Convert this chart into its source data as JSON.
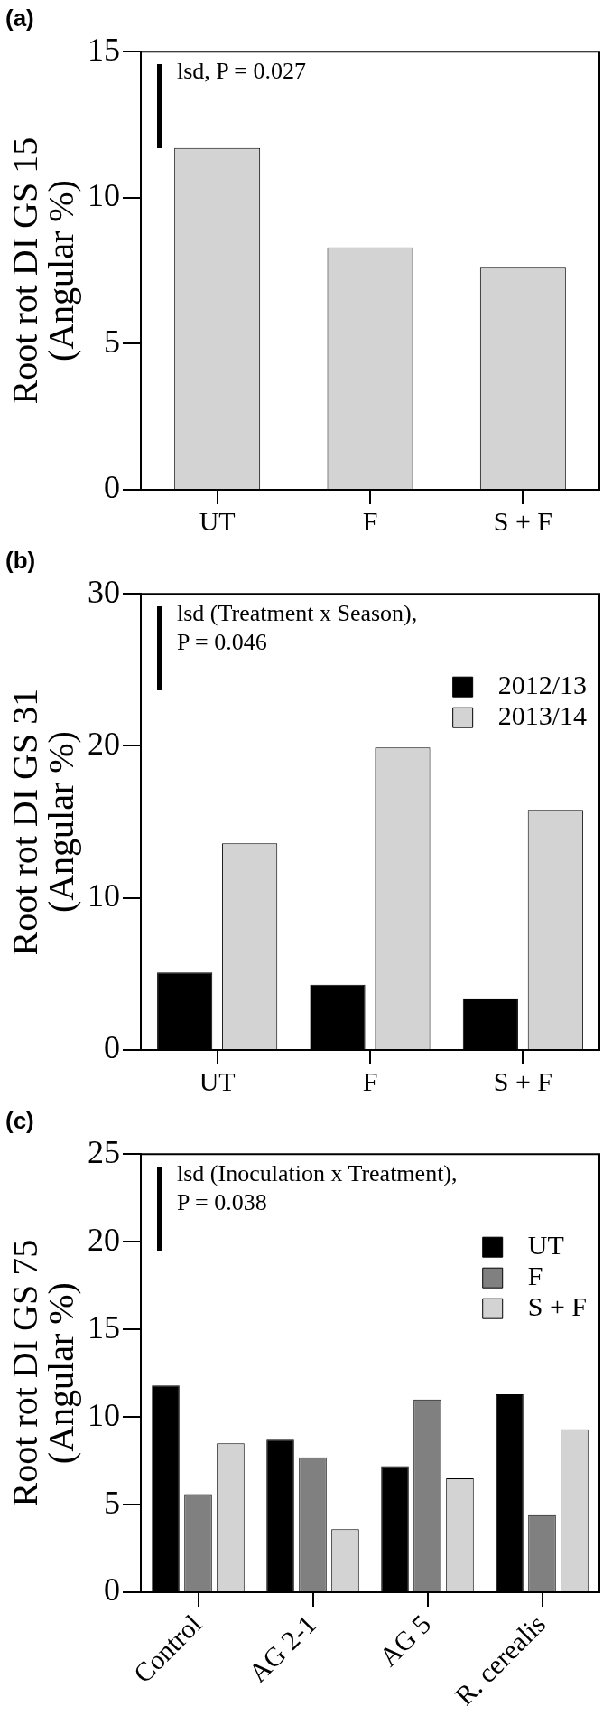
{
  "chart_data": [
    {
      "type": "bar",
      "title": "(a)",
      "ylabel": "Root rot DI GS 15\n(Angular %)",
      "categories": [
        "UT",
        "F",
        "S + F"
      ],
      "series": [
        {
          "color": "#d3d3d3",
          "values": [
            11.7,
            8.3,
            7.6
          ]
        }
      ],
      "ylim": [
        0,
        15
      ],
      "yticks": [
        0,
        5,
        10,
        15
      ],
      "grid": false,
      "legend": false,
      "annotations": [
        "lsd, P = 0.027"
      ]
    },
    {
      "type": "bar",
      "title": "(b)",
      "ylabel": "Root rot DI GS 31\n(Angular %)",
      "categories": [
        "UT",
        "F",
        "S + F"
      ],
      "series": [
        {
          "name": "2012/13",
          "color": "#000000",
          "values": [
            5.1,
            4.3,
            3.4
          ]
        },
        {
          "name": "2013/14",
          "color": "#d3d3d3",
          "values": [
            13.6,
            19.9,
            15.8
          ]
        }
      ],
      "ylim": [
        0,
        30
      ],
      "yticks": [
        0,
        10,
        20,
        30
      ],
      "grid": false,
      "legend": "top right",
      "annotations": [
        "lsd (Treatment x Season),\nP = 0.046"
      ]
    },
    {
      "type": "bar",
      "title": "(c)",
      "ylabel": "Root rot DI GS 75\n(Angular %)",
      "categories": [
        "Control",
        "AG 2-1",
        "AG 5",
        "R. cerealis"
      ],
      "series": [
        {
          "name": "UT",
          "color": "#000000",
          "values": [
            11.8,
            8.7,
            7.2,
            11.3
          ]
        },
        {
          "name": "F",
          "color": "#808080",
          "values": [
            5.6,
            7.7,
            11.0,
            4.4
          ]
        },
        {
          "name": "S + F",
          "color": "#d3d3d3",
          "values": [
            8.5,
            3.6,
            6.5,
            9.3
          ]
        }
      ],
      "ylim": [
        0,
        25
      ],
      "yticks": [
        0,
        5,
        10,
        15,
        20,
        25
      ],
      "grid": false,
      "legend": "top right",
      "annotations": [
        "lsd (Inoculation x Treatment),\nP = 0.038"
      ]
    }
  ]
}
